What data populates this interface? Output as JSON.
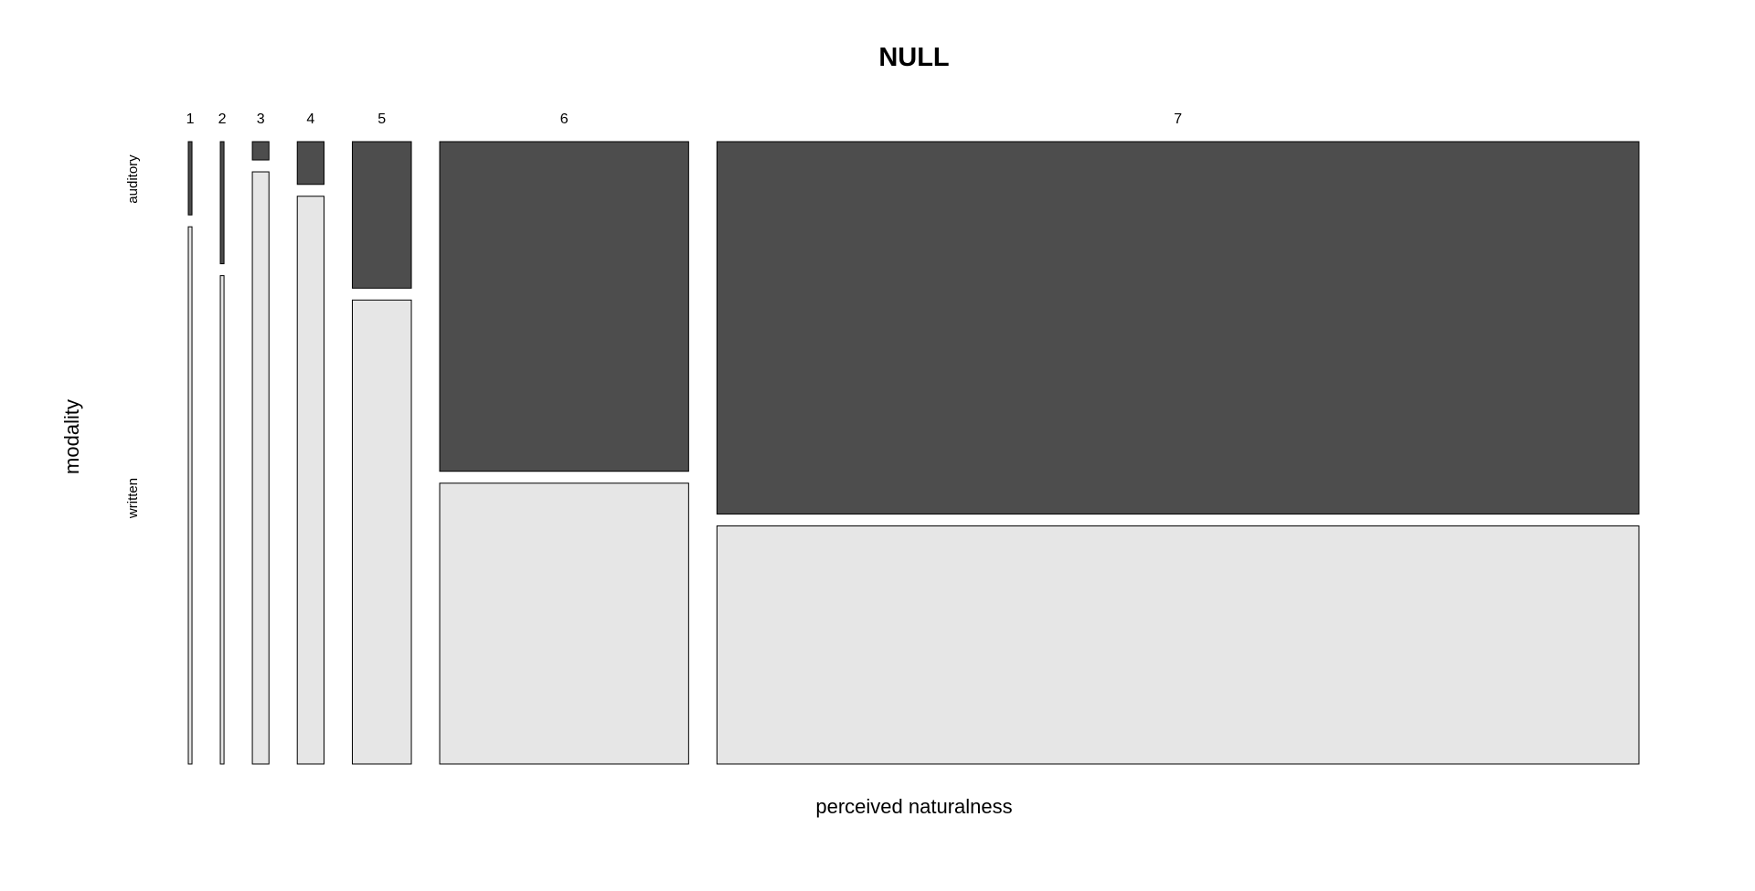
{
  "chart_data": {
    "type": "mosaic",
    "title": "NULL",
    "xlabel": "perceived naturalness",
    "ylabel": "modality",
    "categories": [
      "1",
      "2",
      "3",
      "4",
      "5",
      "6",
      "7"
    ],
    "column_proportions": [
      0.004,
      0.004,
      0.018,
      0.029,
      0.064,
      0.27,
      1.0
    ],
    "rows": [
      "auditory",
      "written"
    ],
    "series": [
      {
        "name": "auditory",
        "values": [
          0.12,
          0.2,
          0.03,
          0.07,
          0.24,
          0.54,
          0.61
        ]
      },
      {
        "name": "written",
        "values": [
          0.88,
          0.8,
          0.97,
          0.93,
          0.76,
          0.46,
          0.39
        ]
      }
    ],
    "colors": {
      "auditory": "#4d4d4d",
      "written": "#e6e6e6"
    },
    "legend": "none",
    "grid": false
  }
}
